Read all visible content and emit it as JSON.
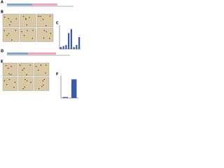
{
  "panels": [
    {
      "label": "A"
    },
    {
      "label": "B"
    },
    {
      "label": "C"
    },
    {
      "label": "D"
    },
    {
      "label": "E"
    },
    {
      "label": "F"
    }
  ],
  "chart_data": [
    {
      "type": "bar",
      "values": [
        1,
        1.5,
        2,
        8,
        10,
        1,
        2,
        6
      ],
      "color": "#3b5ba9",
      "ylim": [
        0,
        12
      ]
    },
    {
      "type": "bar",
      "values": [
        0.5,
        10
      ],
      "color": "#3b5ba9",
      "ylim": [
        0,
        12
      ]
    }
  ]
}
